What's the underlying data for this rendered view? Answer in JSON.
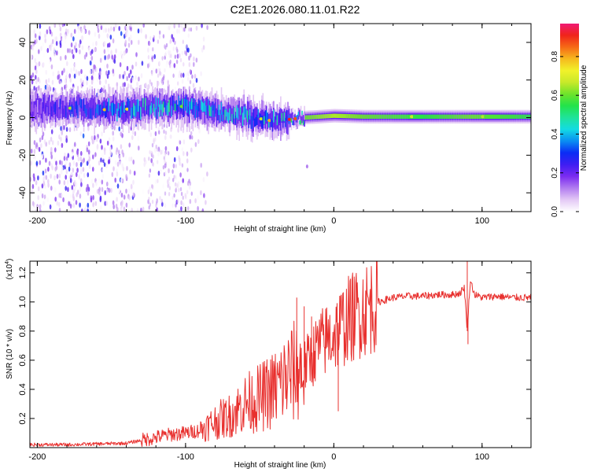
{
  "title": "C2E1.2026.080.11.01.R22",
  "chart_data": [
    {
      "type": "heatmap",
      "name": "spectrogram",
      "xlabel": "Height of straight line (km)",
      "ylabel": "Frequency (Hz)",
      "xlim": [
        -205,
        133
      ],
      "ylim": [
        -50,
        50
      ],
      "xticks": [
        -200,
        -100,
        0,
        100
      ],
      "yticks": [
        -40,
        -20,
        0,
        20,
        40
      ],
      "xtick_labels": [
        "-200",
        "-100",
        "0",
        "100"
      ],
      "ytick_labels": [
        "-40",
        "-20",
        "0",
        "20",
        "40"
      ],
      "colorbar": {
        "label": "Normalized spectral amplitude",
        "range": [
          0.0,
          0.97
        ],
        "ticks": [
          0.0,
          0.2,
          0.4,
          0.6,
          0.8
        ],
        "tick_labels": [
          "0.0",
          "0.2",
          "0.4",
          "0.6",
          "0.8"
        ],
        "colors": [
          "#ffffff",
          "#e3c8f5",
          "#b27df0",
          "#7a2bf0",
          "#3f1ef2",
          "#0b2cf5",
          "#0a8df2",
          "#13dbe3",
          "#1fe39a",
          "#22e34a",
          "#6ee32b",
          "#c8e92a",
          "#f1f22a",
          "#f6b81e",
          "#f66a16",
          "#f0241a",
          "#f01a74"
        ]
      },
      "band": [
        {
          "x": -200,
          "f": 5,
          "amp": 0.25
        },
        {
          "x": -170,
          "f": 5,
          "amp": 0.35
        },
        {
          "x": -150,
          "f": 4,
          "amp": 0.4
        },
        {
          "x": -130,
          "f": 5,
          "amp": 0.5
        },
        {
          "x": -110,
          "f": 6,
          "amp": 0.55
        },
        {
          "x": -100,
          "f": 6,
          "amp": 0.5
        },
        {
          "x": -80,
          "f": 3,
          "amp": 0.5
        },
        {
          "x": -60,
          "f": 1,
          "amp": 0.5
        },
        {
          "x": -40,
          "f": -2,
          "amp": 0.5
        },
        {
          "x": -30,
          "f": -1,
          "amp": 0.55
        },
        {
          "x": -20,
          "f": 0,
          "amp": 0.6
        },
        {
          "x": 0,
          "f": 1,
          "amp": 0.65
        },
        {
          "x": 20,
          "f": 0.5,
          "amp": 0.6
        },
        {
          "x": 60,
          "f": 0.5,
          "amp": 0.55
        },
        {
          "x": 90,
          "f": 0.5,
          "amp": 0.6
        },
        {
          "x": 133,
          "f": 0.5,
          "amp": 0.55
        }
      ]
    },
    {
      "type": "line",
      "name": "snr",
      "xlabel": "Height of straight line (km)",
      "ylabel": "SNR (10 * v/v)",
      "y_multiplier": "(x10",
      "y_multiplier_exp": "4",
      "y_multiplier_close": ")",
      "xlim": [
        -205,
        133
      ],
      "ylim": [
        0,
        1.28
      ],
      "xticks": [
        -200,
        -100,
        0,
        100
      ],
      "yticks": [
        0.2,
        0.4,
        0.6,
        0.8,
        1.0,
        1.2
      ],
      "xtick_labels": [
        "-200",
        "-100",
        "0",
        "100"
      ],
      "ytick_labels": [
        "0.2",
        "0.4",
        "0.6",
        "0.8",
        "1.0",
        "1.2"
      ],
      "color": "#e8302e",
      "x": [
        -205,
        -180,
        -160,
        -140,
        -130,
        -120,
        -110,
        -100,
        -90,
        -80,
        -70,
        -60,
        -50,
        -40,
        -30,
        -20,
        -10,
        0,
        10,
        20,
        30,
        40,
        50,
        60,
        70,
        80,
        85,
        88,
        90,
        92,
        95,
        100,
        110,
        120,
        133
      ],
      "y": [
        0.02,
        0.02,
        0.025,
        0.03,
        0.05,
        0.07,
        0.09,
        0.1,
        0.12,
        0.18,
        0.22,
        0.3,
        0.34,
        0.4,
        0.5,
        0.55,
        0.7,
        0.78,
        0.88,
        0.95,
        1.0,
        1.03,
        1.04,
        1.04,
        1.05,
        1.05,
        1.06,
        1.1,
        0.8,
        1.15,
        1.05,
        1.03,
        1.04,
        1.03,
        1.03
      ],
      "spikes": [
        {
          "x": -25,
          "y": 1.03
        },
        {
          "x": -20,
          "y": 0.97
        },
        {
          "x": -15,
          "y": 0.9
        },
        {
          "x": 3,
          "y": 0.25
        },
        {
          "x": 90,
          "y": 1.28
        },
        {
          "x": 90.5,
          "y": 0.71
        }
      ]
    }
  ]
}
